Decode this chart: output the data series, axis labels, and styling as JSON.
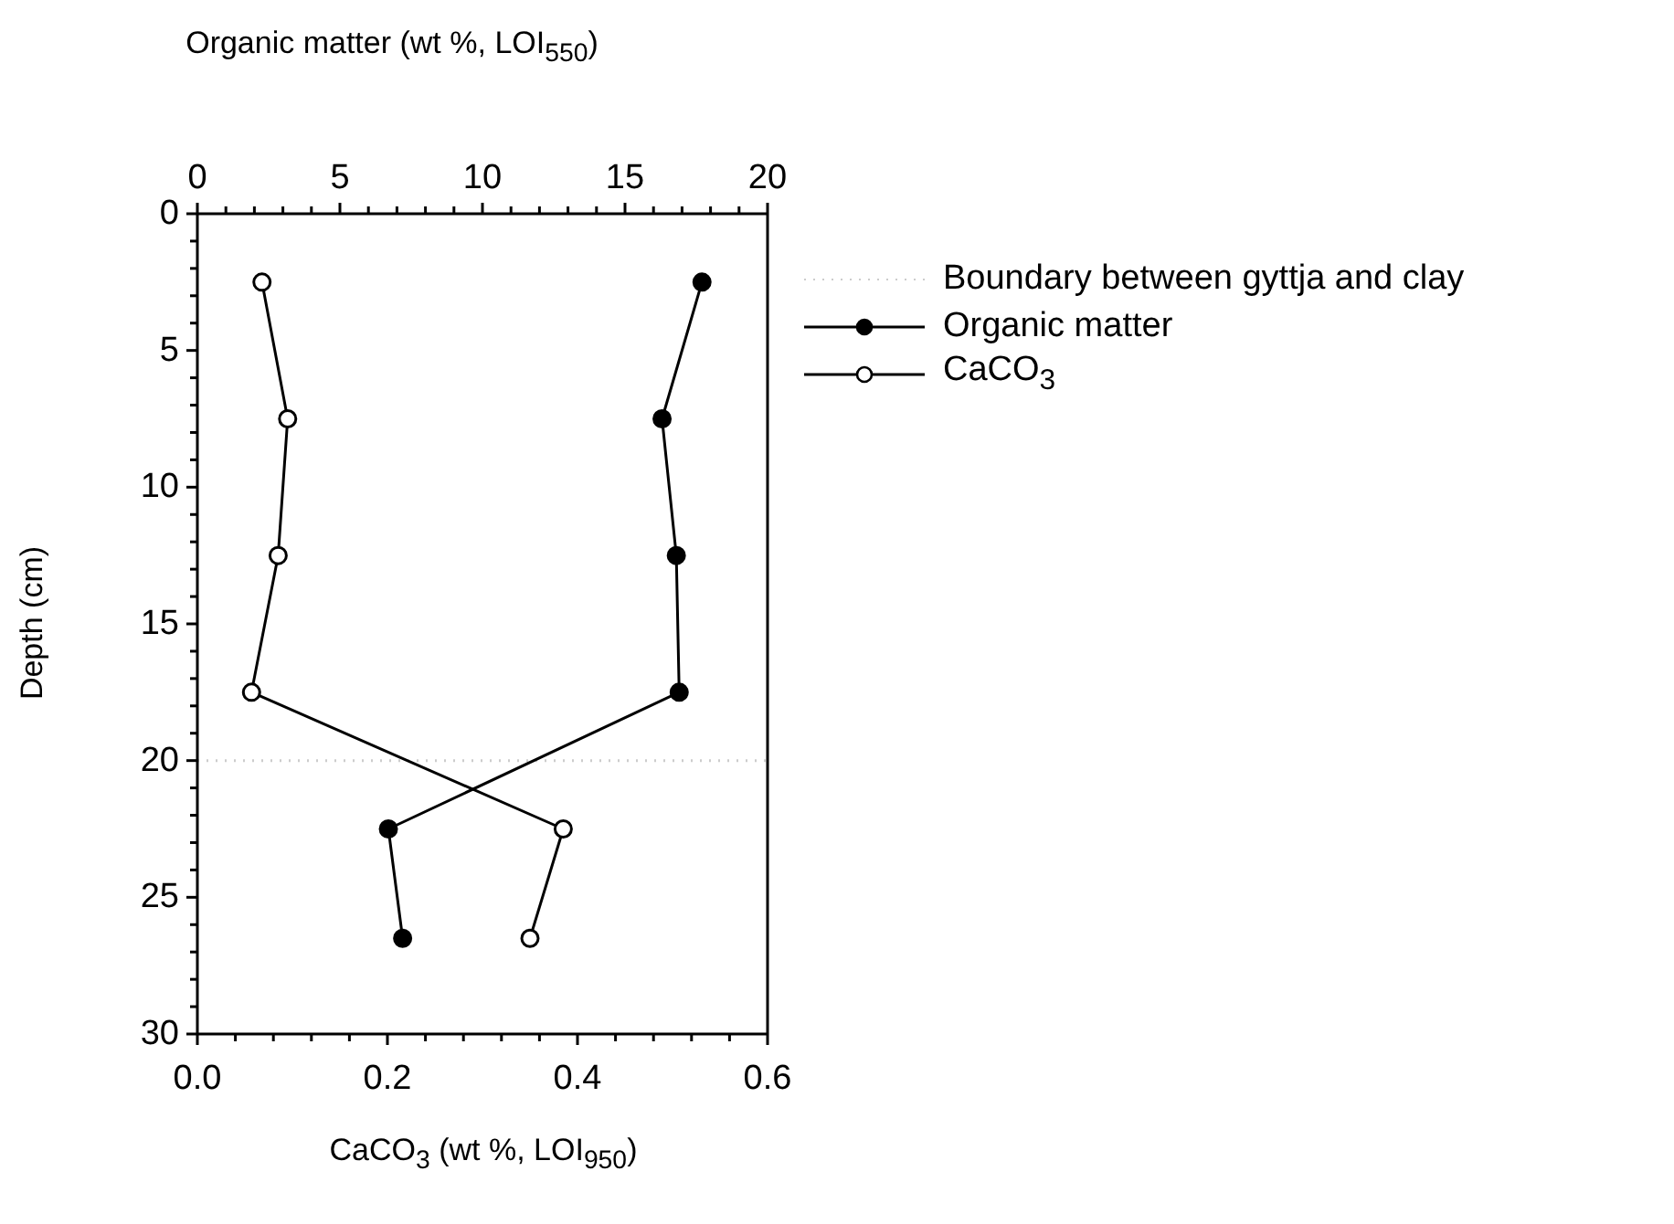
{
  "chart_data": {
    "type": "line",
    "orientation": "horizontal",
    "xlabel": "CaCO$_{3}$ (wt %, LOI$_{950}$)",
    "x2label": "Organic matter (wt %, LOI$_{550}$)",
    "ylabel": "Depth (cm)",
    "x": [
      2.5,
      7.5,
      12.5,
      17.5,
      22.5,
      26.5
    ],
    "series": [
      {
        "name": "Organic matter",
        "color": "#000000",
        "axis": "x2",
        "values": [
          17.7,
          16.3,
          16.8,
          16.9,
          6.7,
          7.2
        ]
      },
      {
        "name": "CaCO$_{3}$",
        "color": "#ffffff",
        "values": [
          0.068,
          0.095,
          0.085,
          0.057,
          0.385,
          0.35
        ]
      }
    ],
    "xlim": [
      0,
      0.6
    ],
    "xticks": [
      {
        "value": 0,
        "label": "0.0"
      },
      {
        "value": 0.04,
        "label": null
      },
      {
        "value": 0.08,
        "label": null
      },
      {
        "value": 0.12,
        "label": null
      },
      {
        "value": 0.16,
        "label": null
      },
      {
        "value": 0.2,
        "label": "0.2"
      },
      {
        "value": 0.24,
        "label": null
      },
      {
        "value": 0.28,
        "label": null
      },
      {
        "value": 0.32,
        "label": null
      },
      {
        "value": 0.36,
        "label": null
      },
      {
        "value": 0.4,
        "label": "0.4"
      },
      {
        "value": 0.44,
        "label": null
      },
      {
        "value": 0.48,
        "label": null
      },
      {
        "value": 0.52,
        "label": null
      },
      {
        "value": 0.56,
        "label": null
      },
      {
        "value": 0.6,
        "label": "0.6"
      }
    ],
    "x2lim": [
      0,
      20
    ],
    "x2ticks": [
      0,
      {
        "value": 1,
        "label": null
      },
      {
        "value": 2,
        "label": null
      },
      {
        "value": 3,
        "label": null
      },
      {
        "value": 4,
        "label": null
      },
      5,
      {
        "value": 6,
        "label": null
      },
      {
        "value": 7,
        "label": null
      },
      {
        "value": 8,
        "label": null
      },
      {
        "value": 9,
        "label": null
      },
      10,
      {
        "value": 11,
        "label": null
      },
      {
        "value": 12,
        "label": null
      },
      {
        "value": 13,
        "label": null
      },
      {
        "value": 14,
        "label": null
      },
      15,
      {
        "value": 16,
        "label": null
      },
      {
        "value": 17,
        "label": null
      },
      {
        "value": 18,
        "label": null
      },
      {
        "value": 19,
        "label": null
      },
      20
    ],
    "ylim": [
      30,
      0
    ],
    "yticks": [
      0,
      {
        "value": 1,
        "label": null
      },
      {
        "value": 2,
        "label": null
      },
      {
        "value": 3,
        "label": null
      },
      {
        "value": 4,
        "label": null
      },
      5,
      {
        "value": 6,
        "label": null
      },
      {
        "value": 7,
        "label": null
      },
      {
        "value": 8,
        "label": null
      },
      {
        "value": 9,
        "label": null
      },
      10,
      {
        "value": 11,
        "label": null
      },
      {
        "value": 12,
        "label": null
      },
      {
        "value": 13,
        "label": null
      },
      {
        "value": 14,
        "label": null
      },
      15,
      {
        "value": 16,
        "label": null
      },
      {
        "value": 17,
        "label": null
      },
      {
        "value": 18,
        "label": null
      },
      {
        "value": 19,
        "label": null
      },
      20,
      {
        "value": 21,
        "label": null
      },
      {
        "value": 22,
        "label": null
      },
      {
        "value": 23,
        "label": null
      },
      {
        "value": 24,
        "label": null
      },
      25,
      {
        "value": 26,
        "label": null
      },
      {
        "value": 27,
        "label": null
      },
      {
        "value": 28,
        "label": null
      },
      {
        "value": 29,
        "label": null
      },
      30
    ],
    "ref_lines": [
      {
        "axis": "y",
        "value": 20,
        "label": "Boundary between gyttja and clay",
        "color": "#cccccc",
        "line_style": "dotted"
      }
    ],
    "marker": "circle",
    "grid": false,
    "legend": "top right"
  }
}
